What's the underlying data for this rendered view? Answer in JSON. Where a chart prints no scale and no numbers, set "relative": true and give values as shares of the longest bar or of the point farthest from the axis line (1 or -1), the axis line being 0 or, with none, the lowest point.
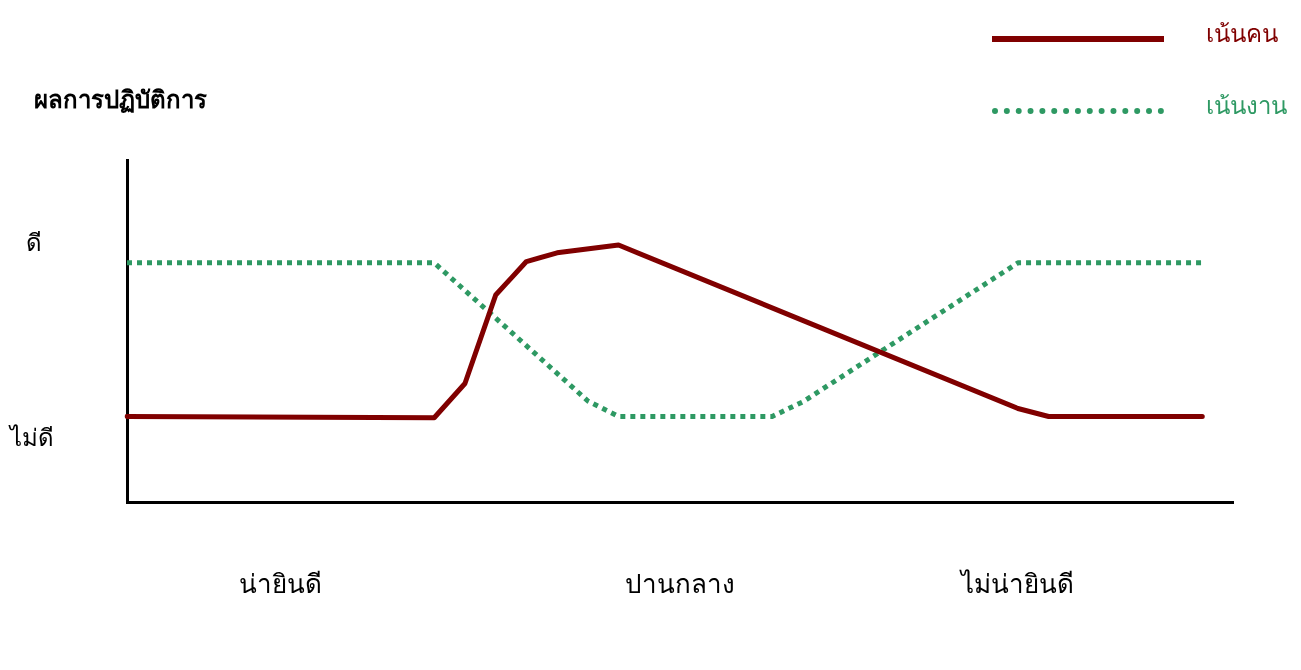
{
  "chart_data": {
    "type": "line",
    "relative": true,
    "categories": [
      null,
      null,
      null,
      null,
      null,
      "น่ายินดี",
      null,
      null,
      null,
      null,
      null,
      null,
      null,
      null,
      null,
      null,
      null,
      null,
      "ปานกลาง",
      null,
      null,
      null,
      null,
      null,
      null,
      null,
      null,
      null,
      null,
      "ไม่น่ายินดี",
      null,
      null,
      null,
      null,
      null,
      null,
      null
    ],
    "annotations": [
      "ผลการปฏิบัติการ",
      "ดี",
      "ไม่ดี"
    ],
    "grid": false,
    "legend": "top right",
    "marker": "none",
    "series": [
      {
        "name": "เน้นคน",
        "color": "#800000",
        "line_style": "solid",
        "values": [
          0.335,
          null,
          null,
          null,
          null,
          null,
          null,
          null,
          null,
          null,
          0.33,
          0.463,
          0.806,
          0.936,
          0.97,
          null,
          1,
          null,
          null,
          null,
          null,
          null,
          null,
          null,
          null,
          null,
          null,
          null,
          null,
          0.366,
          0.335,
          null,
          null,
          null,
          null,
          0.335,
          null
        ]
      },
      {
        "name": "เน้นงาน",
        "color": "#2e9963",
        "line_style": "dotted",
        "values": [
          0.931,
          null,
          null,
          null,
          null,
          null,
          null,
          null,
          null,
          null,
          0.931,
          null,
          null,
          null,
          null,
          0.395,
          0.335,
          null,
          null,
          null,
          null,
          0.335,
          0.392,
          null,
          null,
          null,
          null,
          null,
          null,
          0.931,
          null,
          null,
          null,
          null,
          null,
          0.931,
          null
        ]
      }
    ]
  }
}
